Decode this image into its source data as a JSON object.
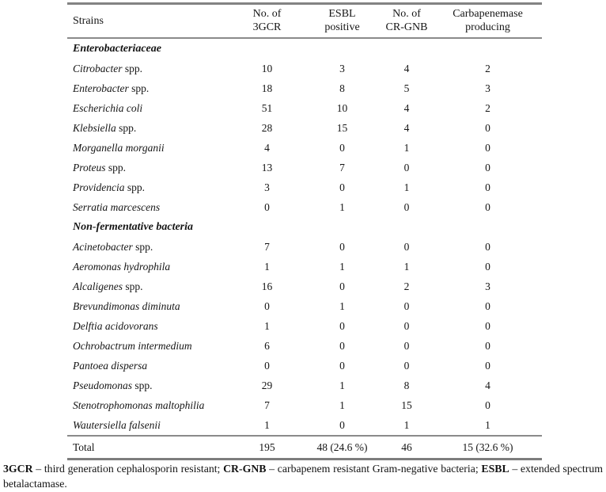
{
  "table": {
    "columns": [
      {
        "lines": [
          "Strains"
        ]
      },
      {
        "lines": [
          "No. of",
          "3GCR"
        ]
      },
      {
        "lines": [
          "ESBL",
          "positive"
        ]
      },
      {
        "lines": [
          "No. of",
          "CR-GNB"
        ]
      },
      {
        "lines": [
          "Carbapenemase",
          "producing"
        ]
      }
    ],
    "sections": [
      {
        "header": "Enterobacteriaceae",
        "rows": [
          {
            "italic": "Citrobacter",
            "rest": " spp.",
            "values": [
              "10",
              "3",
              "4",
              "2"
            ]
          },
          {
            "italic": "Enterobacter",
            "rest": " spp.",
            "values": [
              "18",
              "8",
              "5",
              "3"
            ]
          },
          {
            "italic": "Escherichia coli",
            "rest": "",
            "values": [
              "51",
              "10",
              "4",
              "2"
            ]
          },
          {
            "italic": "Klebsiella",
            "rest": " spp.",
            "values": [
              "28",
              "15",
              "4",
              "0"
            ]
          },
          {
            "italic": "Morganella morganii",
            "rest": "",
            "values": [
              "4",
              "0",
              "1",
              "0"
            ]
          },
          {
            "italic": "Proteus",
            "rest": " spp.",
            "values": [
              "13",
              "7",
              "0",
              "0"
            ]
          },
          {
            "italic": "Providencia",
            "rest": " spp.",
            "values": [
              "3",
              "0",
              "1",
              "0"
            ]
          },
          {
            "italic": "Serratia marcescens",
            "rest": "",
            "values": [
              "0",
              "1",
              "0",
              "0"
            ]
          }
        ]
      },
      {
        "header": "Non-fermentative bacteria",
        "rows": [
          {
            "italic": "Acinetobacter",
            "rest": " spp.",
            "values": [
              "7",
              "0",
              "0",
              "0"
            ]
          },
          {
            "italic": "Aeromonas hydrophila",
            "rest": "",
            "values": [
              "1",
              "1",
              "1",
              "0"
            ]
          },
          {
            "italic": "Alcaligenes",
            "rest": " spp.",
            "values": [
              "16",
              "0",
              "2",
              "3"
            ]
          },
          {
            "italic": "Brevundimonas diminuta",
            "rest": "",
            "values": [
              "0",
              "1",
              "0",
              "0"
            ]
          },
          {
            "italic": "Delftia acidovorans",
            "rest": "",
            "values": [
              "1",
              "0",
              "0",
              "0"
            ]
          },
          {
            "italic": "Ochrobactrum intermedium",
            "rest": "",
            "values": [
              "6",
              "0",
              "0",
              "0"
            ]
          },
          {
            "italic": "Pantoea dispersa",
            "rest": "",
            "values": [
              "0",
              "0",
              "0",
              "0"
            ]
          },
          {
            "italic": "Pseudomonas",
            "rest": " spp.",
            "values": [
              "29",
              "1",
              "8",
              "4"
            ]
          },
          {
            "italic": "Stenotrophomonas maltophilia",
            "rest": "",
            "values": [
              "7",
              "1",
              "15",
              "0"
            ]
          },
          {
            "italic": "Wautersiella falsenii",
            "rest": "",
            "values": [
              "1",
              "0",
              "1",
              "1"
            ]
          }
        ]
      }
    ],
    "total": {
      "label": "Total",
      "values": [
        "195",
        "48 (24.6 %)",
        "46",
        "15 (32.6 %)"
      ]
    }
  },
  "footnote": {
    "segments": [
      {
        "text": "3GCR",
        "bold": true
      },
      {
        "text": " – third generation cephalosporin resistant; ",
        "bold": false
      },
      {
        "text": "CR-GNB",
        "bold": true
      },
      {
        "text": " – carbapenem resistant Gram-negative bacteria; ",
        "bold": false
      },
      {
        "text": "ESBL",
        "bold": true
      },
      {
        "text": " – extended spectrum betalactamase.",
        "bold": false
      }
    ]
  },
  "colors": {
    "rule_gray": "#838383",
    "text": "#151515",
    "background": "#ffffff"
  }
}
